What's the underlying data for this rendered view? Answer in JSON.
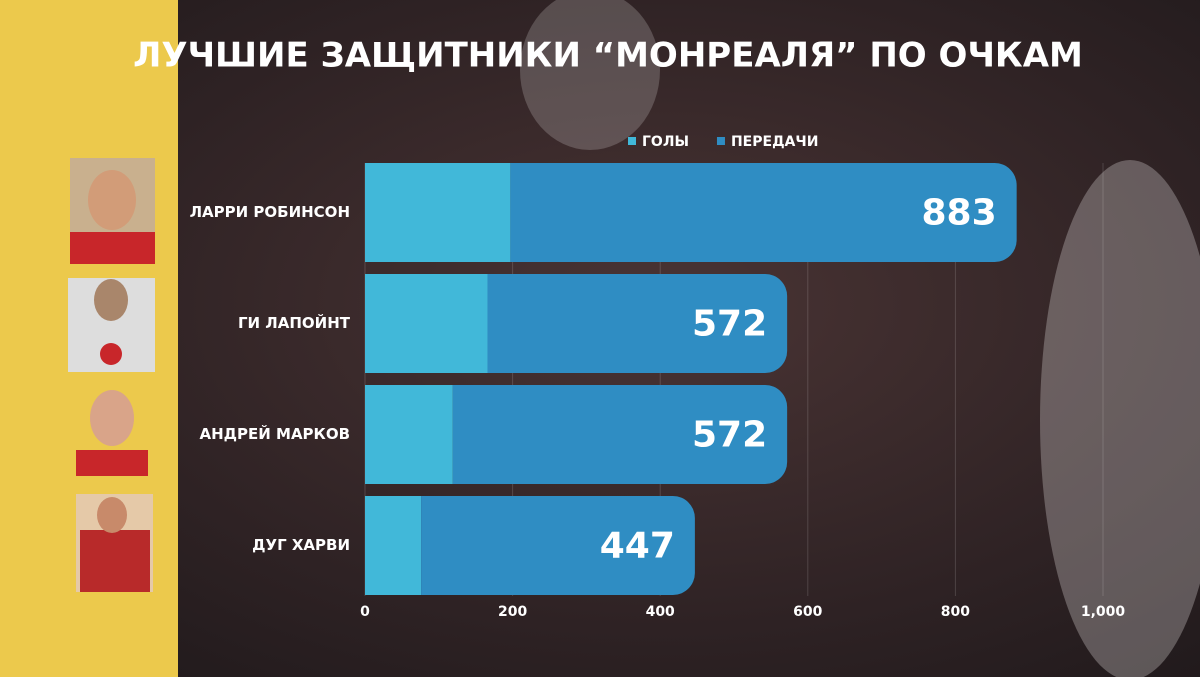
{
  "chart_data": {
    "type": "stacked-barh",
    "title": "ЛУЧШИЕ ЗАЩИТНИКИ “МОНРЕАЛЯ” ПО ОЧКАМ",
    "categories": [
      "ЛАРРИ РОБИНСОН",
      "ГИ ЛАПОЙНТ",
      "АНДРЕЙ МАРКОВ",
      "ДУГ ХАРВИ"
    ],
    "series": [
      {
        "name": "ГОЛЫ",
        "color": "#41b8d9",
        "values": [
          197,
          166,
          119,
          76
        ]
      },
      {
        "name": "ПЕРЕДАЧИ",
        "color": "#2f8dc3",
        "values": [
          686,
          406,
          453,
          371
        ]
      }
    ],
    "totals": [
      883,
      572,
      572,
      447
    ],
    "xlim": [
      0,
      1000
    ],
    "xticks": [
      0,
      200,
      400,
      600,
      800,
      {
        "value": 1000,
        "label": "1,000"
      }
    ],
    "grid": true
  }
}
